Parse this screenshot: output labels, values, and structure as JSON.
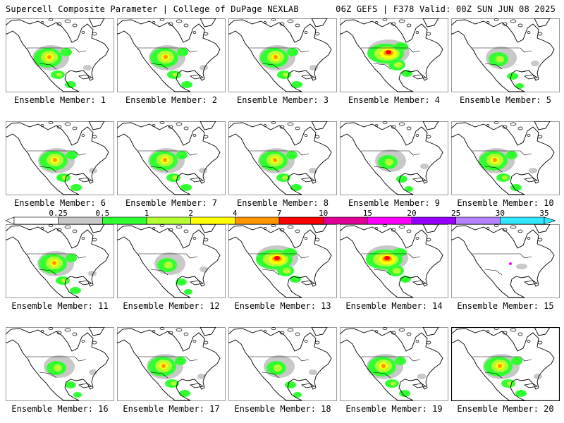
{
  "header": {
    "title": "Supercell Composite Parameter | College of DuPage NEXLAB",
    "run_info": "06Z GEFS | F378 Valid: 00Z SUN JUN 08 2025"
  },
  "colorbar": {
    "labels": [
      "0.25",
      "0.5",
      "1",
      "2",
      "4",
      "7",
      "10",
      "15",
      "20",
      "25",
      "30",
      "35"
    ],
    "colors": [
      "#ffffff",
      "#c8c8c8",
      "#32ff32",
      "#b4ff32",
      "#ffff00",
      "#ff9600",
      "#ff0000",
      "#e10096",
      "#ff00ff",
      "#9600ff",
      "#b482ff",
      "#32e6ff"
    ]
  },
  "map_colors": {
    "land": "#ffffff",
    "coast": "#000000",
    "light": "#c8c8c8",
    "green": "#32ff32",
    "lime": "#b4ff32",
    "yellow": "#ffff00",
    "orange": "#ff9600",
    "red": "#ff0000",
    "magenta": "#ff00ff"
  },
  "members": [
    {
      "label": "Ensemble Member: 1",
      "intensity": "moderate"
    },
    {
      "label": "Ensemble Member: 2",
      "intensity": "moderate"
    },
    {
      "label": "Ensemble Member: 3",
      "intensity": "moderate"
    },
    {
      "label": "Ensemble Member: 4",
      "intensity": "strong"
    },
    {
      "label": "Ensemble Member: 5",
      "intensity": "weak"
    },
    {
      "label": "Ensemble Member: 6",
      "intensity": "moderate"
    },
    {
      "label": "Ensemble Member: 7",
      "intensity": "moderate"
    },
    {
      "label": "Ensemble Member: 8",
      "intensity": "moderate"
    },
    {
      "label": "Ensemble Member: 9",
      "intensity": "weak"
    },
    {
      "label": "Ensemble Member: 10",
      "intensity": "moderate"
    },
    {
      "label": "Ensemble Member: 11",
      "intensity": "moderate"
    },
    {
      "label": "Ensemble Member: 12",
      "intensity": "weak"
    },
    {
      "label": "Ensemble Member: 13",
      "intensity": "strong"
    },
    {
      "label": "Ensemble Member: 14",
      "intensity": "strong"
    },
    {
      "label": "Ensemble Member: 15",
      "intensity": "minimal"
    },
    {
      "label": "Ensemble Member: 16",
      "intensity": "weak"
    },
    {
      "label": "Ensemble Member: 17",
      "intensity": "moderate"
    },
    {
      "label": "Ensemble Member: 18",
      "intensity": "weak"
    },
    {
      "label": "Ensemble Member: 19",
      "intensity": "moderate"
    },
    {
      "label": "Ensemble Member: 20",
      "intensity": "moderate"
    }
  ]
}
